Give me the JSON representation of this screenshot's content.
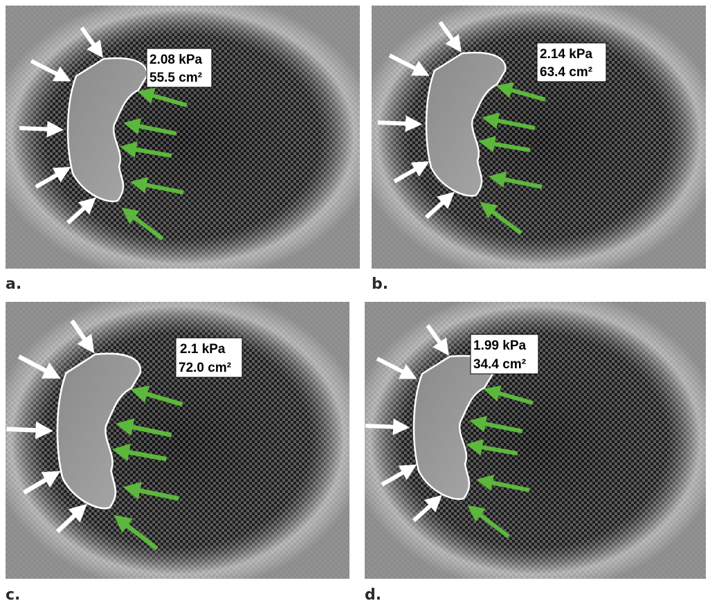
{
  "panels": [
    {
      "label": "a.",
      "stiffness": "2.08 kPa",
      "area": "55.5 cm²"
    },
    {
      "label": "b.",
      "stiffness": "2.14 kPa",
      "area": "63.4 cm²"
    },
    {
      "label": "c.",
      "stiffness": "2.1 kPa",
      "area": "72.0 cm²"
    },
    {
      "label": "d.",
      "stiffness": "1.99 kPa",
      "area": "34.4 cm²"
    }
  ]
}
